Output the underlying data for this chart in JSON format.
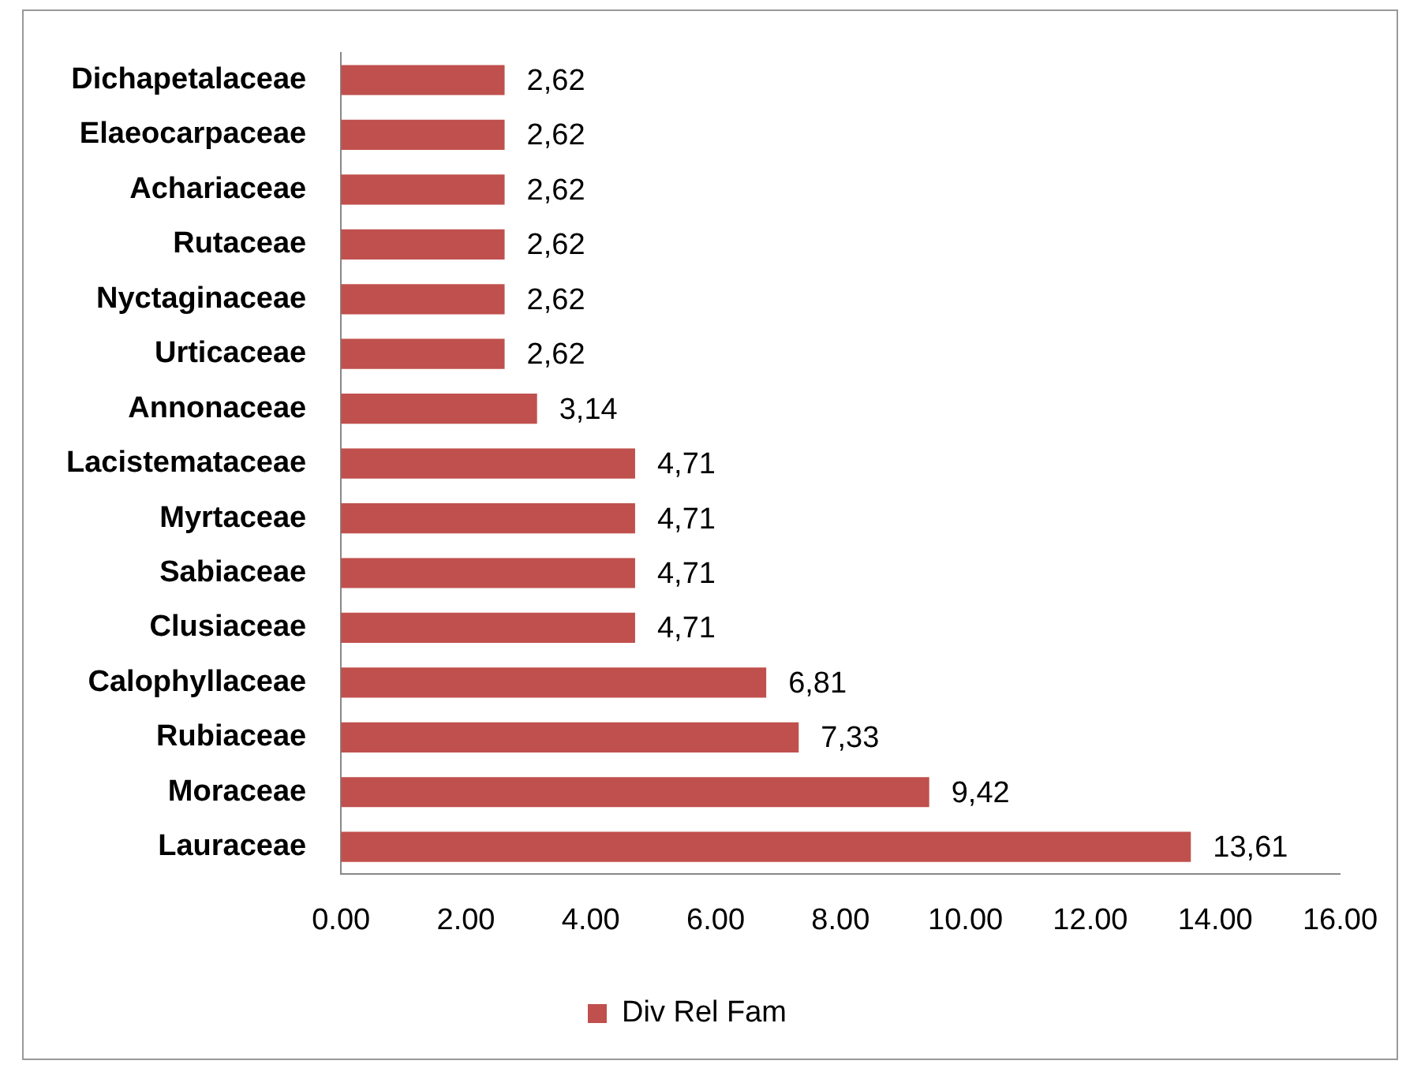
{
  "chart_data": {
    "type": "bar",
    "orientation": "horizontal",
    "categories": [
      "Dichapetalaceae",
      "Elaeocarpaceae",
      "Achariaceae",
      "Rutaceae",
      "Nyctaginaceae",
      "Urticaceae",
      "Annonaceae",
      "Lacistemataceae",
      "Myrtaceae",
      "Sabiaceae",
      "Clusiaceae",
      "Calophyllaceae",
      "Rubiaceae",
      "Moraceae",
      "Lauraceae"
    ],
    "series": [
      {
        "name": "Div Rel Fam",
        "color": "#c0504d",
        "values": [
          2.62,
          2.62,
          2.62,
          2.62,
          2.62,
          2.62,
          3.14,
          4.71,
          4.71,
          4.71,
          4.71,
          6.81,
          7.33,
          9.42,
          13.61
        ],
        "value_labels": [
          "2,62",
          "2,62",
          "2,62",
          "2,62",
          "2,62",
          "2,62",
          "3,14",
          "4,71",
          "4,71",
          "4,71",
          "4,71",
          "6,81",
          "7,33",
          "9,42",
          "13,61"
        ]
      }
    ],
    "xlim": [
      0,
      16
    ],
    "xticks": [
      {
        "value": 0,
        "label": "0.00"
      },
      {
        "value": 2,
        "label": "2.00"
      },
      {
        "value": 4,
        "label": "4.00"
      },
      {
        "value": 6,
        "label": "6.00"
      },
      {
        "value": 8,
        "label": "8.00"
      },
      {
        "value": 10,
        "label": "10.00"
      },
      {
        "value": 12,
        "label": "12.00"
      },
      {
        "value": 14,
        "label": "14.00"
      },
      {
        "value": 16,
        "label": "16.00"
      }
    ],
    "grid": false,
    "legend": "bottom"
  }
}
